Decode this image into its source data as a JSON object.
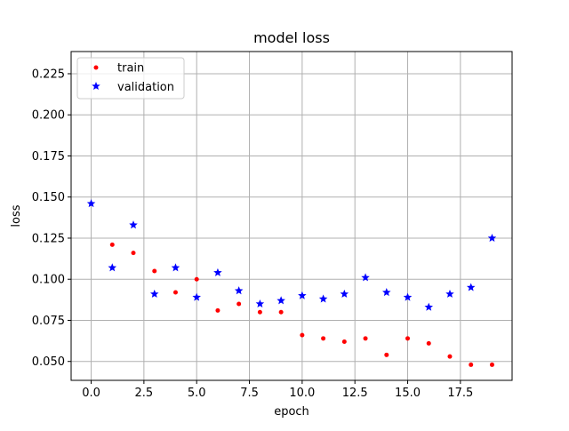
{
  "chart_data": {
    "type": "scatter",
    "title": "model loss",
    "xlabel": "epoch",
    "ylabel": "loss",
    "xlim": [
      -0.95,
      19.95
    ],
    "ylim": [
      0.0385,
      0.2385
    ],
    "xticks": [
      0.0,
      2.5,
      5.0,
      7.5,
      10.0,
      12.5,
      15.0,
      17.5
    ],
    "xtick_labels": [
      "0.0",
      "2.5",
      "5.0",
      "7.5",
      "10.0",
      "12.5",
      "15.0",
      "17.5"
    ],
    "yticks": [
      0.05,
      0.075,
      0.1,
      0.125,
      0.15,
      0.175,
      0.2,
      0.225
    ],
    "ytick_labels": [
      "0.050",
      "0.075",
      "0.100",
      "0.125",
      "0.150",
      "0.175",
      "0.200",
      "0.225"
    ],
    "grid": true,
    "legend_position": "top-left",
    "series": [
      {
        "name": "train",
        "color": "#ff0000",
        "marker": "dot",
        "x": [
          1,
          2,
          3,
          4,
          5,
          6,
          7,
          8,
          9,
          10,
          11,
          12,
          13,
          14,
          15,
          16,
          17,
          18,
          19
        ],
        "y": [
          0.121,
          0.116,
          0.105,
          0.092,
          0.1,
          0.081,
          0.085,
          0.08,
          0.08,
          0.066,
          0.064,
          0.062,
          0.064,
          0.054,
          0.064,
          0.061,
          0.053,
          0.048,
          0.048
        ]
      },
      {
        "name": "validation",
        "color": "#0000ff",
        "marker": "star",
        "x": [
          0,
          1,
          2,
          3,
          4,
          5,
          6,
          7,
          8,
          9,
          10,
          11,
          12,
          13,
          14,
          15,
          16,
          17,
          18,
          19
        ],
        "y": [
          0.146,
          0.107,
          0.133,
          0.091,
          0.107,
          0.089,
          0.104,
          0.093,
          0.085,
          0.087,
          0.09,
          0.088,
          0.091,
          0.101,
          0.092,
          0.089,
          0.083,
          0.091,
          0.095,
          0.125
        ]
      }
    ]
  }
}
